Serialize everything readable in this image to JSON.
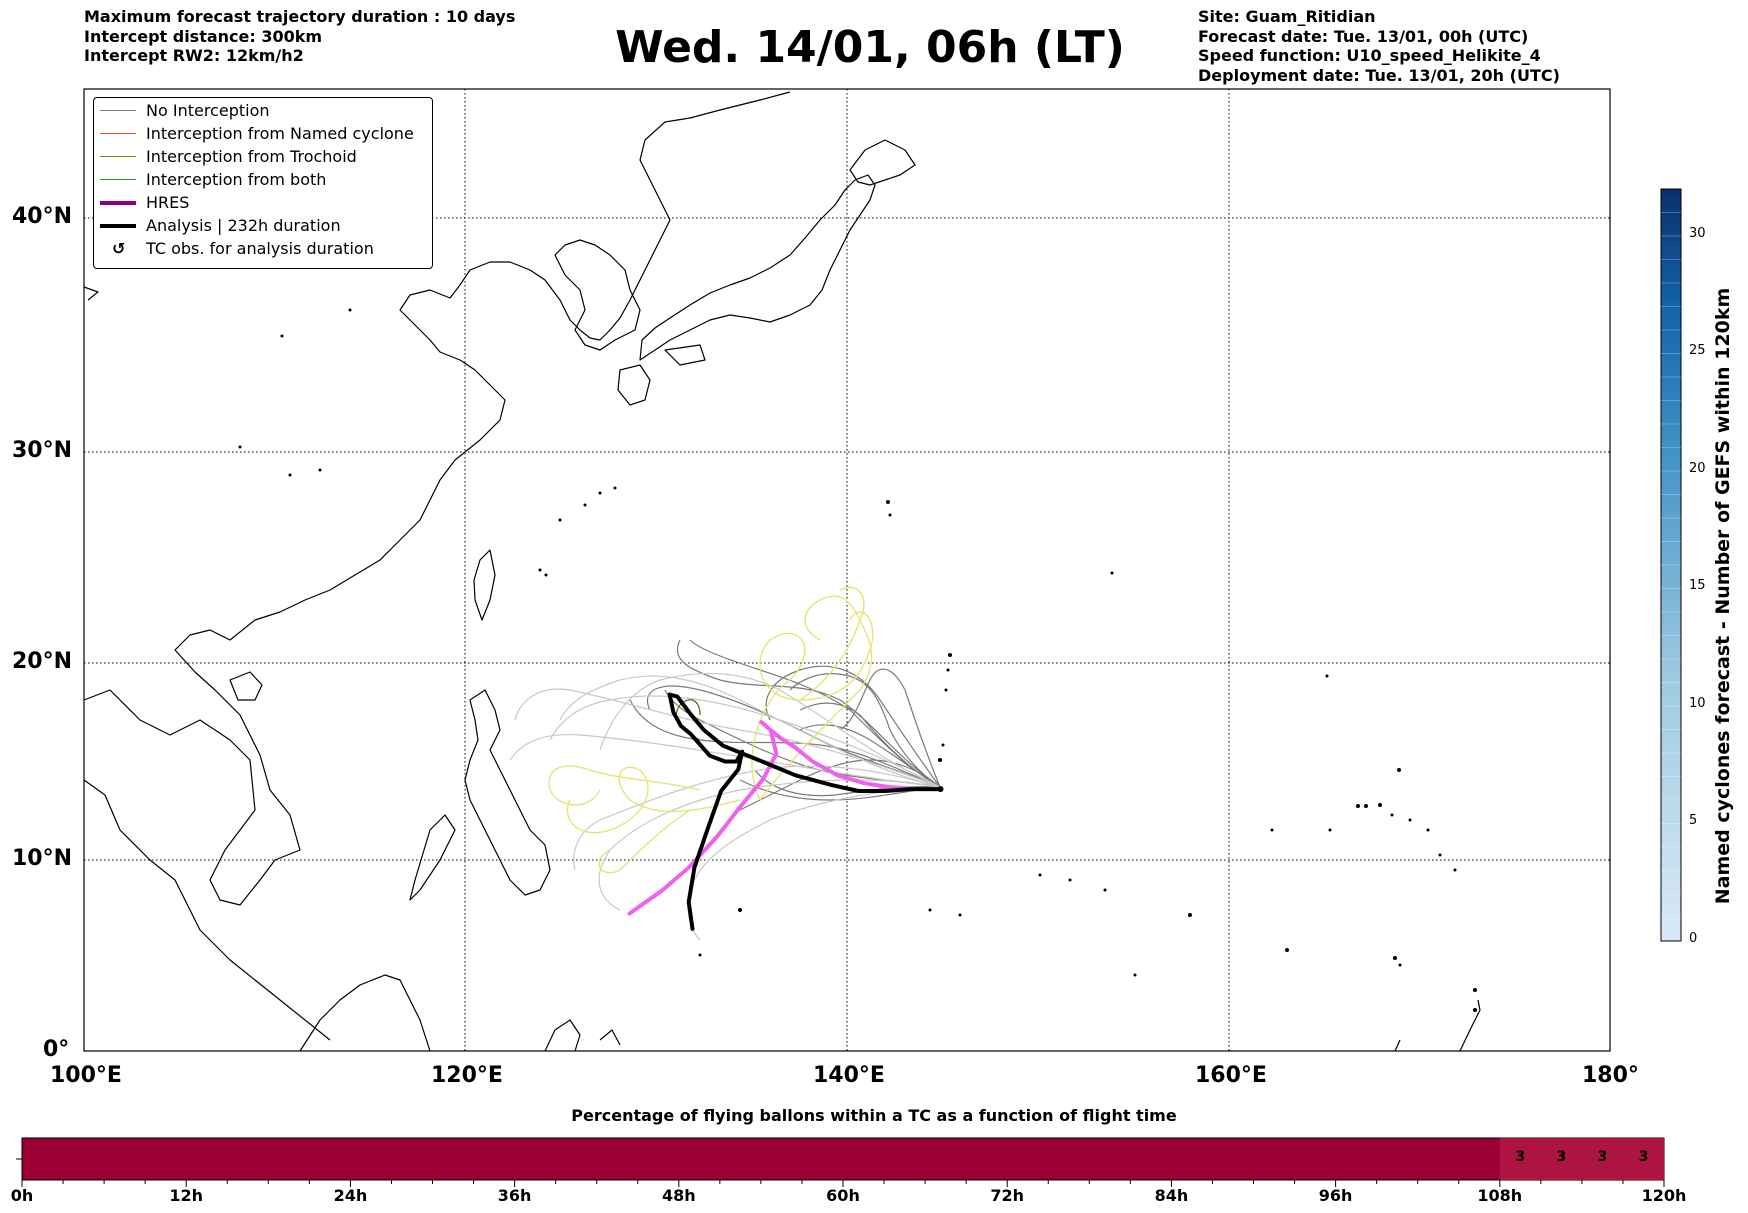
{
  "header_left": {
    "line1": "Maximum forecast trajectory duration : 10 days",
    "line2": "Intercept distance: 300km",
    "line3": "Intercept RW2: 12km/h2"
  },
  "title": "Wed. 14/01, 06h (LT)",
  "header_right": {
    "line1": "Site: Guam_Ritidian",
    "line2": "Forecast date: Tue. 13/01, 00h (UTC)",
    "line3": "Speed function: U10_speed_Helikite_4",
    "line4": "Deployment date: Tue. 13/01, 20h (UTC)"
  },
  "map": {
    "lon_labels": [
      "100°E",
      "120°E",
      "140°E",
      "160°E",
      "180°"
    ],
    "lat_labels": [
      "0°",
      "10°N",
      "20°N",
      "30°N",
      "40°N"
    ],
    "lon_range": [
      100,
      180
    ],
    "lat_range": [
      0,
      44
    ],
    "gridlines": true
  },
  "legend": [
    {
      "label": "No Interception",
      "color": "#808080",
      "style": "line"
    },
    {
      "label": "Interception from Named cyclone",
      "color": "#e8501f",
      "style": "line"
    },
    {
      "label": "Interception from Trochoid",
      "color": "#808000",
      "style": "line"
    },
    {
      "label": "Interception from both",
      "color": "#2e8b2e",
      "style": "line"
    },
    {
      "label": "HRES",
      "color": "#8b008b",
      "style": "thick"
    },
    {
      "label": "Analysis | 232h duration",
      "color": "#000000",
      "style": "thick"
    },
    {
      "label": "TC obs. for analysis duration",
      "color": "#000000",
      "style": "symbol"
    }
  ],
  "colorbar": {
    "label": "Named cyclones forecast - Number of GEFS within 120km",
    "ticks": [
      "0",
      "5",
      "10",
      "15",
      "20",
      "25",
      "30"
    ],
    "range": [
      0,
      32
    ],
    "color_low": "#dbe9f6",
    "color_high": "#08306b"
  },
  "bottom_bar": {
    "title": "Percentage of flying ballons within a TC as a function of flight time",
    "ticks": [
      "0h",
      "12h",
      "24h",
      "36h",
      "48h",
      "60h",
      "72h",
      "84h",
      "96h",
      "108h",
      "120h"
    ],
    "values": [
      {
        "label": "3",
        "hour": 111
      },
      {
        "label": "3",
        "hour": 114
      },
      {
        "label": "3",
        "hour": 117
      },
      {
        "label": "3",
        "hour": 120
      }
    ],
    "base_color": "#9a0036",
    "highlight_color": "#ad1343",
    "highlight_from_hour": 108
  },
  "chart_data": {
    "type": "map-trajectories",
    "site_lonlat": [
      144.9,
      13.6
    ],
    "analysis_track": [
      [
        131.9,
        6.4
      ],
      [
        131.7,
        7.8
      ],
      [
        132.0,
        9.6
      ],
      [
        132.7,
        11.6
      ],
      [
        133.4,
        13.5
      ],
      [
        134.3,
        14.6
      ],
      [
        134.5,
        15.5
      ],
      [
        134.2,
        15.0
      ],
      [
        133.6,
        15.0
      ],
      [
        132.8,
        15.3
      ],
      [
        131.8,
        16.4
      ],
      [
        131.3,
        16.8
      ],
      [
        130.9,
        17.5
      ],
      [
        130.7,
        18.4
      ],
      [
        131.1,
        18.3
      ],
      [
        131.8,
        17.4
      ],
      [
        132.5,
        16.6
      ],
      [
        133.5,
        15.8
      ],
      [
        135.3,
        15.1
      ],
      [
        137.3,
        14.3
      ],
      [
        139.2,
        13.8
      ],
      [
        140.6,
        13.5
      ],
      [
        142.0,
        13.5
      ],
      [
        143.3,
        13.6
      ],
      [
        144.9,
        13.6
      ]
    ],
    "hres_track": [
      [
        128.6,
        7.2
      ],
      [
        130.3,
        8.4
      ],
      [
        131.7,
        9.6
      ],
      [
        133.2,
        11.2
      ],
      [
        134.4,
        12.7
      ],
      [
        135.6,
        14.1
      ],
      [
        136.3,
        15.4
      ],
      [
        136.0,
        16.6
      ],
      [
        135.5,
        17.0
      ],
      [
        136.5,
        16.2
      ],
      [
        137.3,
        15.7
      ],
      [
        138.2,
        15.0
      ],
      [
        139.5,
        14.3
      ],
      [
        140.9,
        13.9
      ],
      [
        142.2,
        13.7
      ],
      [
        143.8,
        13.6
      ],
      [
        144.9,
        13.6
      ]
    ]
  }
}
